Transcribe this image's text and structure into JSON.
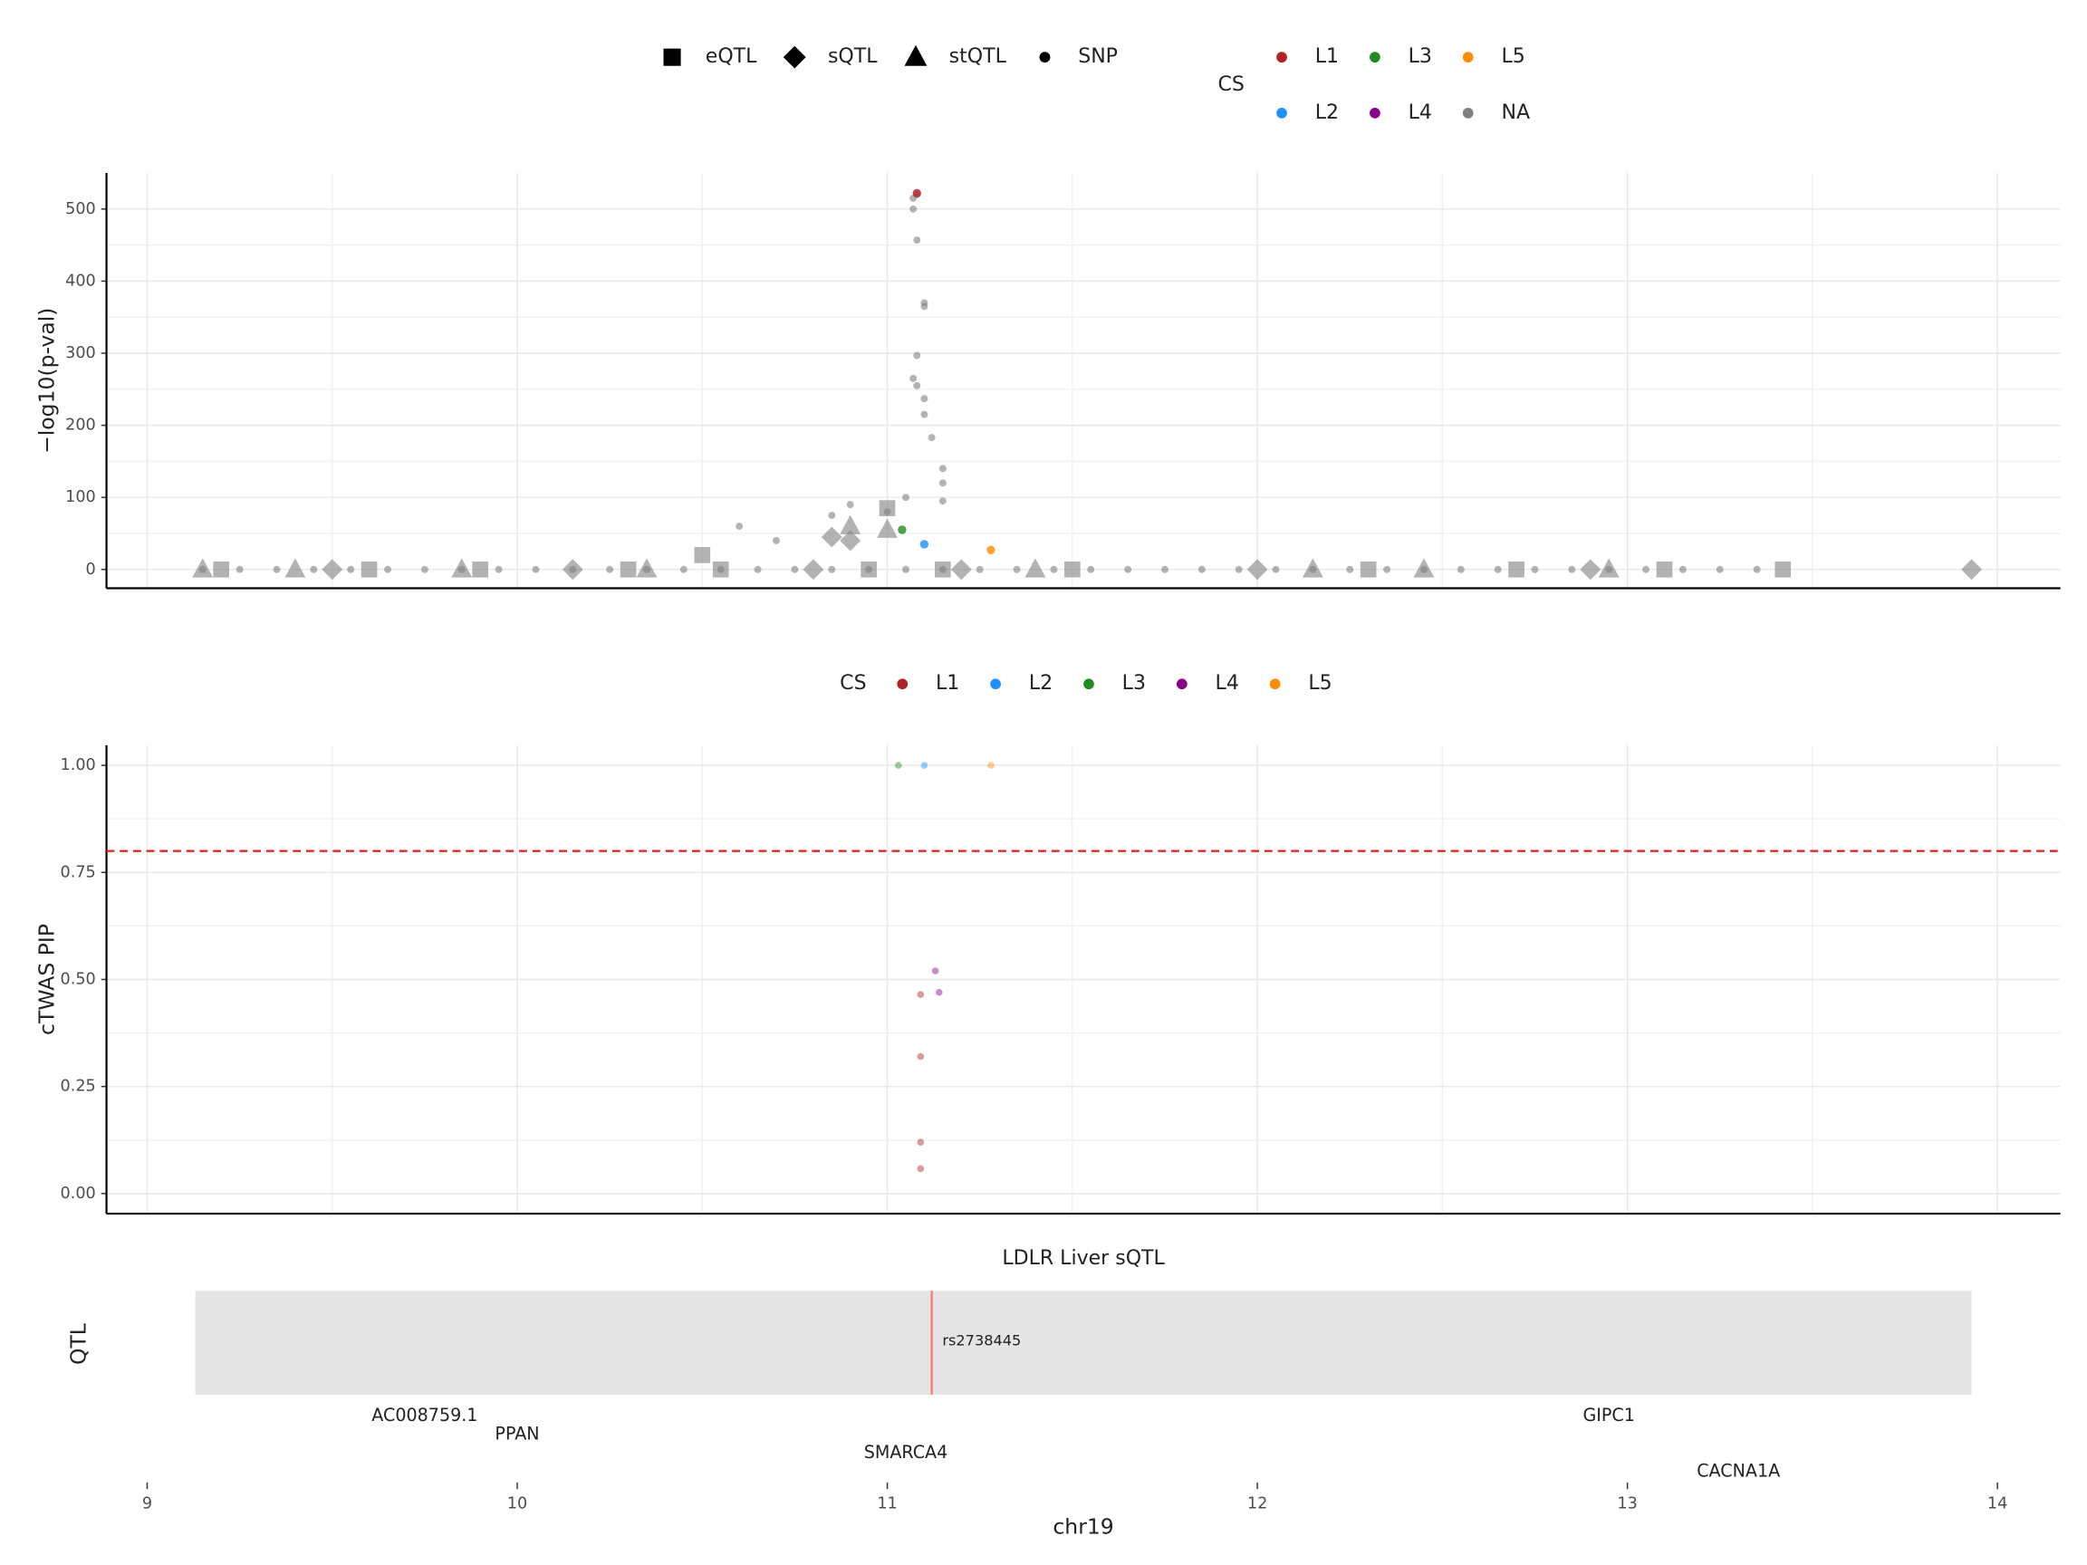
{
  "chart_data": [
    {
      "type": "scatter",
      "ylabel": "−log10(p-val)",
      "xlim": [
        8.89,
        14.17
      ],
      "ylim": [
        -26,
        550
      ],
      "xticks": [
        9,
        10,
        11,
        12,
        13,
        14
      ],
      "yticks": [
        0,
        100,
        200,
        300,
        400,
        500
      ],
      "grid": true,
      "series": [
        {
          "name": "eQTL",
          "shape": "square",
          "color": "#808080",
          "x": [
            9.2,
            9.6,
            9.9,
            10.3,
            10.55,
            10.95,
            11.15,
            11.5,
            12.3,
            12.7,
            13.1,
            13.42,
            11.0,
            10.5
          ],
          "values": [
            0,
            0,
            0,
            0,
            0,
            0,
            0,
            0,
            0,
            0,
            0,
            0,
            85,
            20
          ]
        },
        {
          "name": "sQTL",
          "shape": "diamond",
          "color": "#808080",
          "x": [
            9.5,
            10.15,
            10.8,
            11.2,
            12.0,
            12.9,
            13.93,
            10.9,
            10.85
          ],
          "values": [
            0,
            0,
            0,
            0,
            0,
            0,
            0,
            40,
            45
          ]
        },
        {
          "name": "stQTL",
          "shape": "triangle",
          "color": "#808080",
          "x": [
            9.15,
            9.4,
            9.85,
            10.35,
            11.4,
            12.15,
            12.45,
            12.95,
            10.9,
            11.0
          ],
          "values": [
            0,
            0,
            0,
            0,
            0,
            0,
            0,
            0,
            60,
            55
          ]
        },
        {
          "name": "SNP",
          "shape": "circle",
          "color": "#808080",
          "x": [
            9.15,
            9.25,
            9.35,
            9.45,
            9.55,
            9.65,
            9.75,
            9.85,
            9.95,
            10.05,
            10.15,
            10.25,
            10.35,
            10.45,
            10.55,
            10.65,
            10.75,
            10.85,
            10.95,
            11.05,
            11.15,
            11.25,
            11.35,
            11.45,
            11.55,
            11.65,
            11.75,
            11.85,
            11.95,
            12.05,
            12.15,
            12.25,
            12.35,
            12.45,
            12.55,
            12.65,
            12.75,
            12.85,
            12.95,
            13.05,
            13.15,
            13.25,
            13.35,
            11.08,
            11.07,
            11.07,
            11.08,
            11.1,
            11.1,
            11.08,
            11.07,
            11.08,
            11.1,
            11.12,
            11.1,
            11.15,
            11.15,
            10.9,
            10.85,
            10.7,
            10.6,
            11.0,
            11.05,
            11.15
          ],
          "values": [
            0,
            0,
            0,
            0,
            0,
            0,
            0,
            0,
            0,
            0,
            0,
            0,
            0,
            0,
            0,
            0,
            0,
            0,
            0,
            0,
            0,
            0,
            0,
            0,
            0,
            0,
            0,
            0,
            0,
            0,
            0,
            0,
            0,
            0,
            0,
            0,
            0,
            0,
            0,
            0,
            0,
            0,
            0,
            520,
            515,
            500,
            457,
            365,
            370,
            297,
            265,
            255,
            237,
            183,
            215,
            140,
            120,
            90,
            75,
            40,
            60,
            80,
            100,
            95
          ]
        }
      ],
      "cs_legend": {
        "title": "CS",
        "names": [
          "L1",
          "L2",
          "L3",
          "L4",
          "L5",
          "NA"
        ],
        "colors": [
          "#b22222",
          "#1e90ff",
          "#228b22",
          "#8b008b",
          "#ff8c00",
          "#808080"
        ]
      },
      "cs_points": [
        {
          "name": "L1",
          "x": [
            11.08
          ],
          "values": [
            522
          ]
        },
        {
          "name": "L2",
          "x": [
            11.1
          ],
          "values": [
            35
          ]
        },
        {
          "name": "L3",
          "x": [
            11.04
          ],
          "values": [
            55
          ]
        },
        {
          "name": "L5",
          "x": [
            11.28
          ],
          "values": [
            27
          ]
        }
      ]
    },
    {
      "type": "scatter",
      "ylabel": "cTWAS PIP",
      "xlim": [
        8.89,
        14.17
      ],
      "ylim": [
        -0.047,
        1.047
      ],
      "xticks": [
        9,
        10,
        11,
        12,
        13,
        14
      ],
      "yticks": [
        {
          "value": 0,
          "label": "0.00"
        },
        {
          "value": 0.25,
          "label": "0.25"
        },
        {
          "value": 0.5,
          "label": "0.50"
        },
        {
          "value": 0.75,
          "label": "0.75"
        },
        {
          "value": 1,
          "label": "1.00"
        }
      ],
      "grid": true,
      "threshold": 0.8,
      "threshold_color": "#e41a1c",
      "legend_title": "CS",
      "series": [
        {
          "name": "L1",
          "color": "#b22222",
          "x": [
            11.09,
            11.09,
            11.09,
            11.09
          ],
          "values": [
            0.465,
            0.32,
            0.12,
            0.058
          ]
        },
        {
          "name": "L2",
          "color": "#1e90ff",
          "x": [
            11.1
          ],
          "values": [
            1.0
          ]
        },
        {
          "name": "L3",
          "color": "#228b22",
          "x": [
            11.03
          ],
          "values": [
            1.0
          ]
        },
        {
          "name": "L4",
          "color": "#8b008b",
          "x": [
            11.13,
            11.14
          ],
          "values": [
            0.52,
            0.47
          ]
        },
        {
          "name": "L5",
          "color": "#ff8c00",
          "x": [
            11.28
          ],
          "values": [
            1.0
          ]
        }
      ]
    },
    {
      "type": "track",
      "title": "LDLR Liver sQTL",
      "ylabel": "QTL",
      "xlabel": "chr19",
      "xlim": [
        8.89,
        14.17
      ],
      "xticks": [
        9,
        10,
        11,
        12,
        13,
        14
      ],
      "region": [
        9.13,
        13.93
      ],
      "variant": {
        "name": "rs2738445",
        "x": 11.12
      },
      "genes": [
        {
          "label": "AC008759.1",
          "x": 9.75
        },
        {
          "label": "PPAN",
          "x": 10.0
        },
        {
          "label": "SMARCA4",
          "x": 11.05
        },
        {
          "label": "CACNA1A",
          "x": 13.3
        },
        {
          "label": "GIPC1",
          "x": 12.95
        }
      ]
    }
  ]
}
